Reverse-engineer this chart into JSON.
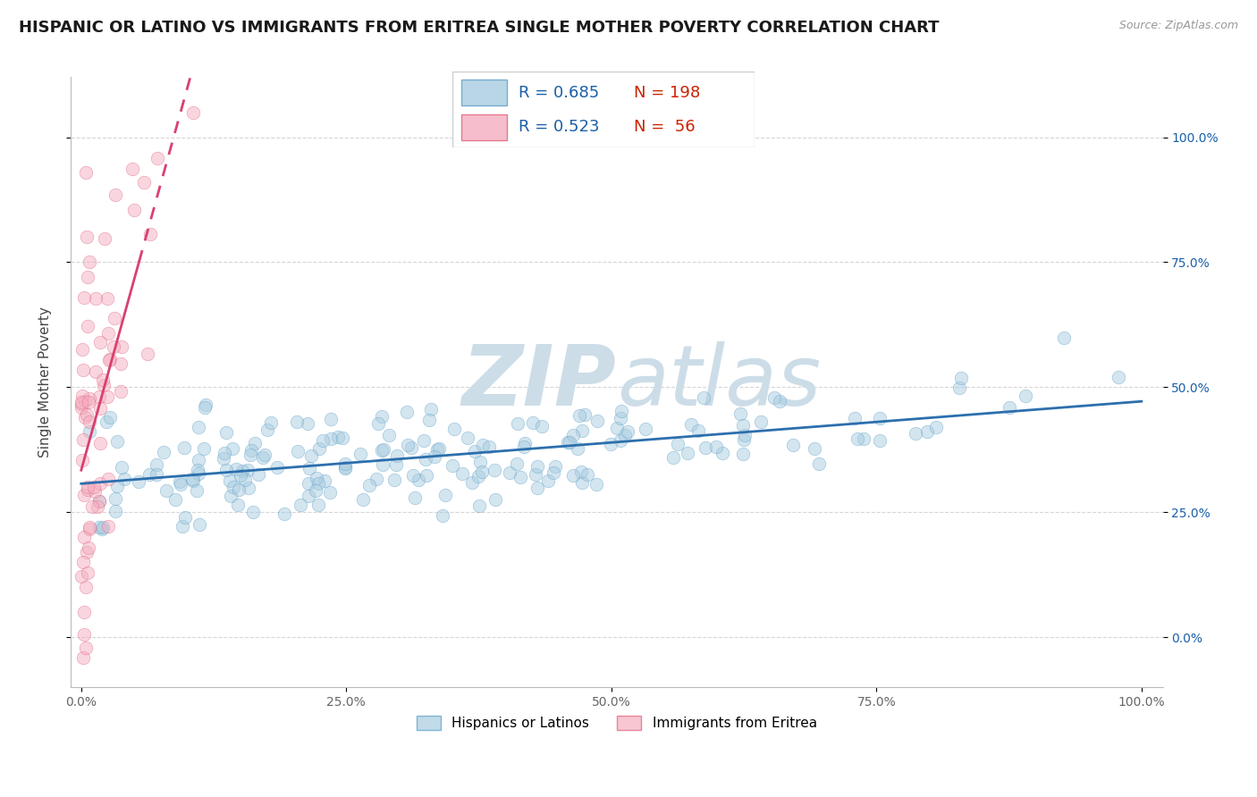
{
  "title": "HISPANIC OR LATINO VS IMMIGRANTS FROM ERITREA SINGLE MOTHER POVERTY CORRELATION CHART",
  "source": "Source: ZipAtlas.com",
  "ylabel": "Single Mother Poverty",
  "xlim_min": -0.01,
  "xlim_max": 1.02,
  "ylim_min": -0.1,
  "ylim_max": 1.12,
  "ytick_values": [
    0.0,
    0.25,
    0.5,
    0.75,
    1.0
  ],
  "ytick_labels": [
    "0.0%",
    "25.0%",
    "50.0%",
    "75.0%",
    "100.0%"
  ],
  "xtick_values": [
    0.0,
    0.25,
    0.5,
    0.75,
    1.0
  ],
  "xtick_labels": [
    "0.0%",
    "25.0%",
    "50.0%",
    "75.0%",
    "100.0%"
  ],
  "series1_color": "#a8cce0",
  "series1_edge": "#5b9ec9",
  "series1_name": "Hispanics or Latinos",
  "series1_R": "0.685",
  "series1_N": "198",
  "series1_trend_color": "#2c6fad",
  "series2_color": "#f4aec0",
  "series2_edge": "#e0607a",
  "series2_name": "Immigrants from Eritrea",
  "series2_R": "0.523",
  "series2_N": "56",
  "series2_trend_color": "#d94070",
  "legend_R_color": "#1a5fa8",
  "legend_N_color": "#cc2200",
  "bg_color": "#ffffff",
  "watermark_text": "ZIPatlas",
  "watermark_color": "#ccdde8",
  "grid_color": "#cccccc",
  "title_fontsize": 13,
  "ylabel_fontsize": 11,
  "tick_fontsize": 10,
  "right_tick_color": "#1a5fa8",
  "seed": 42
}
